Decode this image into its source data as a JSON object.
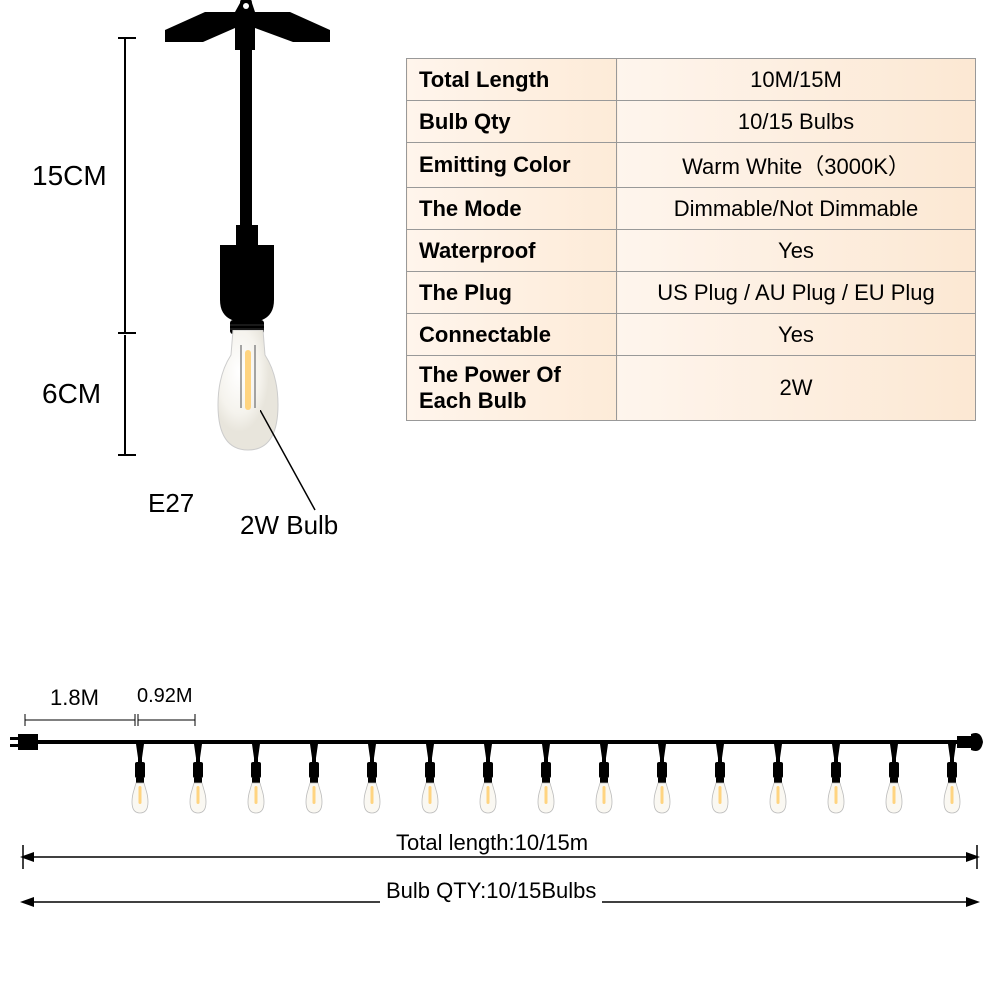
{
  "diagram": {
    "dim_socket": "15CM",
    "dim_bulb": "6CM",
    "bulb_type": "E27",
    "bulb_watt": "2W Bulb"
  },
  "specs": {
    "rows": [
      {
        "label": "Total Length",
        "value": "10M/15M"
      },
      {
        "label": "Bulb Qty",
        "value": "10/15 Bulbs"
      },
      {
        "label": "Emitting Color",
        "value": "Warm White（3000K）"
      },
      {
        "label": "The Mode",
        "value": "Dimmable/Not Dimmable"
      },
      {
        "label": "Waterproof",
        "value": "Yes"
      },
      {
        "label": "The Plug",
        "value": "US Plug / AU Plug / EU Plug"
      },
      {
        "label": "Connectable",
        "value": "Yes"
      },
      {
        "label": "The Power Of Each Bulb",
        "value": "2W"
      }
    ]
  },
  "string": {
    "lead_length": "1.8M",
    "spacing": "0.92M",
    "total_label": "Total length:10/15m",
    "qty_label": "Bulb QTY:10/15Bulbs",
    "bulb_positions": [
      120,
      178,
      236,
      294,
      352,
      410,
      468,
      526,
      584,
      642,
      700,
      758,
      816,
      874,
      932
    ],
    "bulb_count": 15
  },
  "colors": {
    "black": "#000000",
    "table_bg_light": "#fff5ec",
    "table_bg_dark": "#fce8d3",
    "bulb_glass": "#f8f6f0",
    "filament": "#ffcc66",
    "border": "#999999"
  }
}
